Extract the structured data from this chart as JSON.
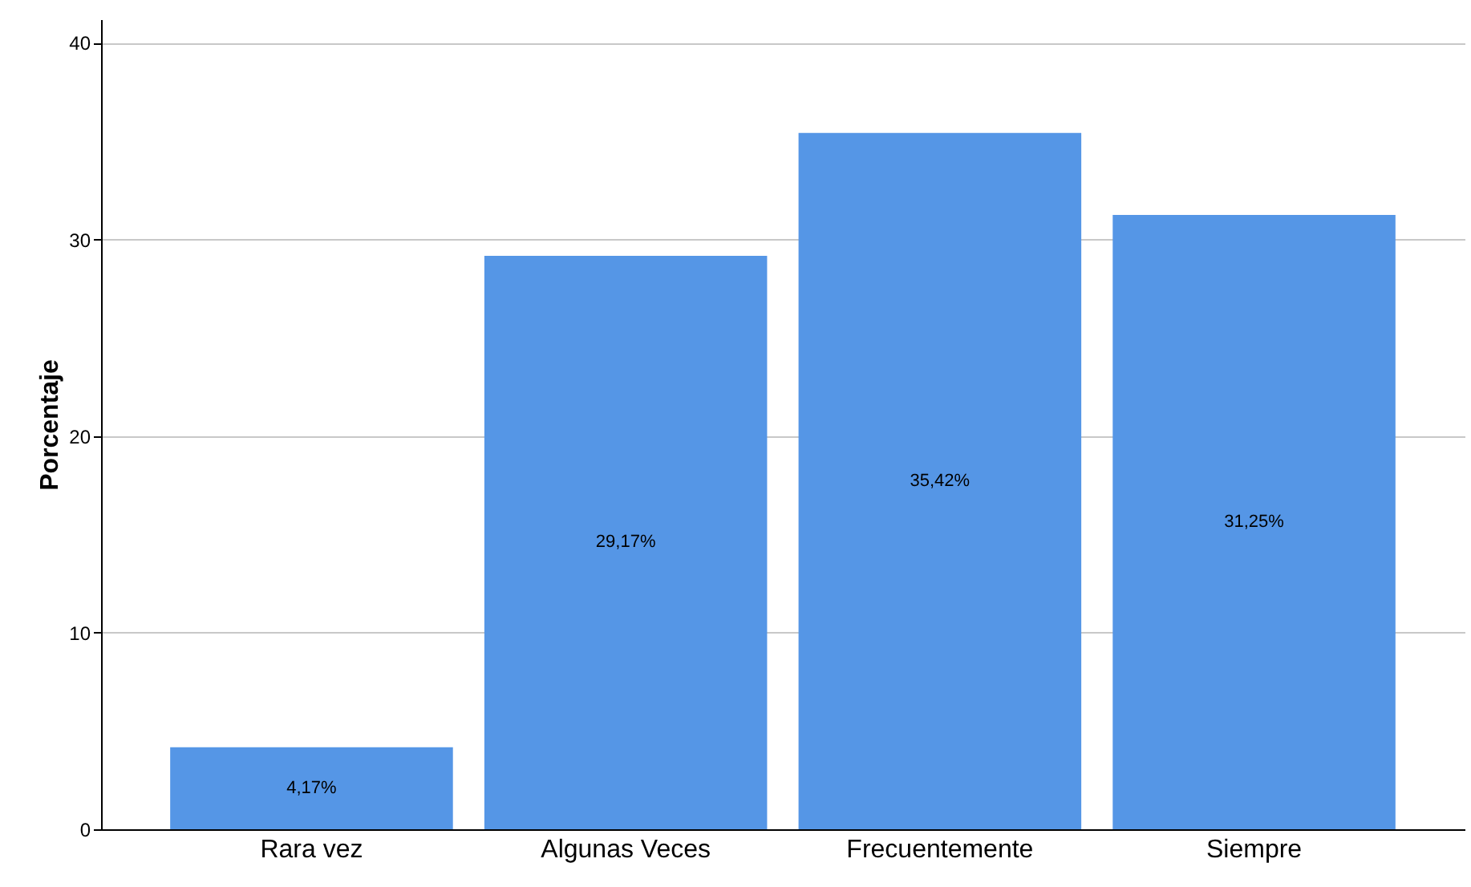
{
  "chart_data": {
    "type": "bar",
    "ylabel": "Porcentaje",
    "categories": [
      "Rara vez",
      "Algunas Veces",
      "Frecuentemente",
      "Siempre"
    ],
    "values": [
      4.17,
      29.17,
      35.42,
      31.25
    ],
    "value_labels": [
      "4,17%",
      "29,17%",
      "35,42%",
      "31,25%"
    ],
    "color": "#5596e6",
    "ylim": [
      0,
      41.2
    ],
    "yticks": [
      0,
      10,
      20,
      30,
      40
    ],
    "grid": "y"
  }
}
